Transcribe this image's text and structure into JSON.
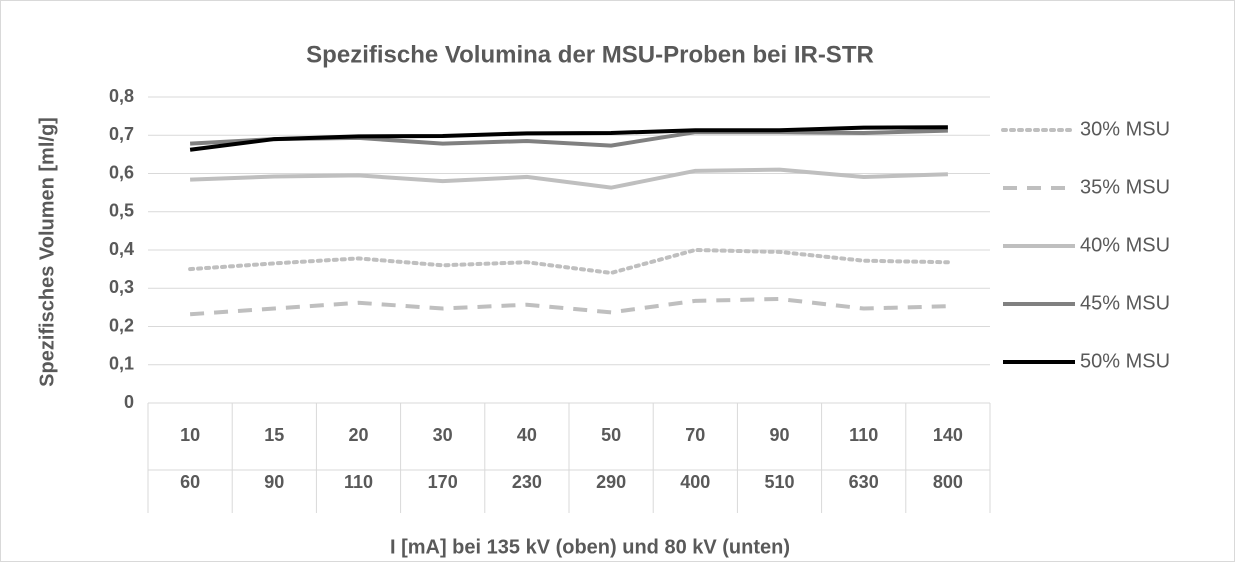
{
  "chart_data": {
    "type": "line",
    "title": "Spezifische Volumina der MSU-Proben bei IR-STR",
    "y_label": "Spezifisches Volumen [ml/g]",
    "x_label": "I [mA] bei 135 kV (oben) und 80 kV (unten)",
    "categories": [
      "10",
      "15",
      "20",
      "30",
      "40",
      "50",
      "70",
      "90",
      "110",
      "140"
    ],
    "categories_lower": [
      "60",
      "90",
      "110",
      "170",
      "230",
      "290",
      "400",
      "510",
      "630",
      "800"
    ],
    "ylim": [
      0,
      0.8
    ],
    "yticks": [
      0,
      {
        "value": 0.1,
        "label": "0,1"
      },
      {
        "value": 0.2,
        "label": "0,2"
      },
      {
        "value": 0.3,
        "label": "0,3"
      },
      {
        "value": 0.4,
        "label": "0,4"
      },
      {
        "value": 0.5,
        "label": "0,5"
      },
      {
        "value": 0.6,
        "label": "0,6"
      },
      {
        "value": 0.7,
        "label": "0,7"
      },
      {
        "value": 0.8,
        "label": "0,8"
      }
    ],
    "grid": true,
    "legend": "right",
    "series": [
      {
        "name": "30% MSU",
        "color": "#bfbfbf",
        "style": "dotted",
        "values": [
          0.35,
          0.365,
          0.378,
          0.36,
          0.368,
          0.34,
          0.4,
          0.395,
          0.372,
          0.368
        ]
      },
      {
        "name": "35% MSU",
        "color": "#bfbfbf",
        "style": "dashed",
        "values": [
          0.232,
          0.247,
          0.262,
          0.247,
          0.257,
          0.237,
          0.267,
          0.272,
          0.247,
          0.253
        ]
      },
      {
        "name": "40% MSU",
        "color": "#bfbfbf",
        "style": "solid",
        "values": [
          0.584,
          0.592,
          0.595,
          0.58,
          0.591,
          0.563,
          0.607,
          0.61,
          0.591,
          0.598
        ]
      },
      {
        "name": "45% MSU",
        "color": "#808080",
        "style": "solid",
        "values": [
          0.678,
          0.69,
          0.693,
          0.678,
          0.685,
          0.673,
          0.708,
          0.708,
          0.706,
          0.712
        ]
      },
      {
        "name": "50% MSU",
        "color": "#000000",
        "style": "solid",
        "values": [
          0.662,
          0.69,
          0.697,
          0.698,
          0.705,
          0.706,
          0.713,
          0.713,
          0.72,
          0.721
        ]
      }
    ]
  }
}
